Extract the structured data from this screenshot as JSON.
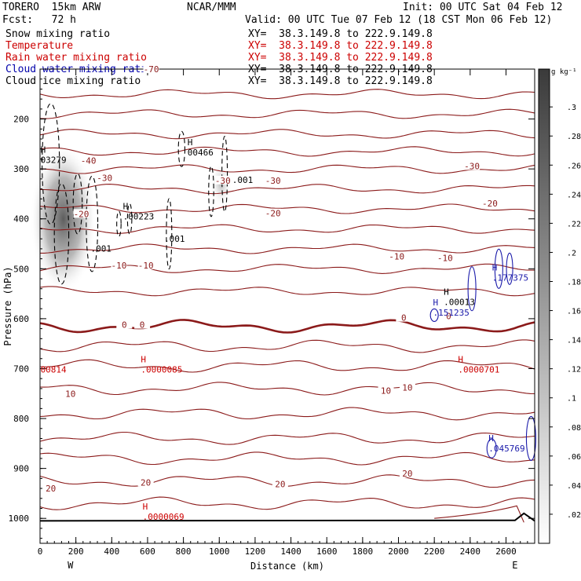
{
  "header": {
    "model": "TORERO  15km ARW",
    "org": "NCAR/MMM",
    "init": "Init: 00 UTC Sat 04 Feb 12",
    "fcst": "Fcst:   72 h",
    "valid": "Valid: 00 UTC Tue 07 Feb 12 (18 CST Mon 06 Feb 12)"
  },
  "fields": [
    {
      "name": "Snow mixing ratio",
      "xy": "XY=  38.3.149.8 to 222.9.149.8",
      "color": "#000000"
    },
    {
      "name": "Temperature",
      "xy": "XY=  38.3.149.8 to 222.9.149.8",
      "color": "#cc0000"
    },
    {
      "name": "Rain water mixing ratio",
      "xy": "XY=  38.3.149.8 to 222.9.149.8",
      "color": "#cc0000"
    },
    {
      "name": "Cloud water mixing ratio",
      "xy": "XY=  38.3.149.8 to 222.9.149.8",
      "color": "#0000aa"
    },
    {
      "name": "Cloud ice mixing ratio",
      "xy": "XY=  38.3.149.8 to 222.9.149.8",
      "color": "#000000"
    }
  ],
  "colors": {
    "temperature": "#8b1a1a",
    "rain": "#cc0000",
    "cloud_water": "#1a1aaa",
    "cloud_ice": "#000000",
    "axis": "#000000"
  },
  "chart_data": {
    "type": "cross-section contour",
    "xlabel": "Distance (km)",
    "ylabel": "Pressure (hPa)",
    "xlim": [
      0,
      2760
    ],
    "ylim": [
      1050,
      100
    ],
    "x_ticks": [
      0,
      200,
      400,
      600,
      800,
      1000,
      1200,
      1400,
      1600,
      1800,
      2000,
      2200,
      2400,
      2600
    ],
    "y_ticks": [
      200,
      300,
      400,
      500,
      600,
      700,
      800,
      900,
      1000
    ],
    "end_labels": {
      "left": "W",
      "right": "E"
    },
    "colorbar": {
      "unit": "g kg⁻¹",
      "ticks": [
        ".02",
        ".04",
        ".06",
        ".08",
        ".1",
        ".12",
        ".14",
        ".16",
        ".18",
        ".2",
        ".22",
        ".24",
        ".26",
        ".28",
        ".3"
      ]
    },
    "temperature_labels": [
      {
        "text": "-70",
        "x": 620,
        "p": 100
      },
      {
        "text": "-40",
        "x": 270,
        "p": 283
      },
      {
        "text": "-30",
        "x": 360,
        "p": 318
      },
      {
        "text": "-30",
        "x": 1020,
        "p": 323
      },
      {
        "text": "-30",
        "x": 1300,
        "p": 323
      },
      {
        "text": "-30",
        "x": 2410,
        "p": 294
      },
      {
        "text": "-20",
        "x": 230,
        "p": 390
      },
      {
        "text": "-20",
        "x": 1300,
        "p": 389
      },
      {
        "text": "-20",
        "x": 2510,
        "p": 369
      },
      {
        "text": "-10",
        "x": 440,
        "p": 493
      },
      {
        "text": "-10",
        "x": 590,
        "p": 493
      },
      {
        "text": "-10",
        "x": 1990,
        "p": 475
      },
      {
        "text": "-10",
        "x": 2260,
        "p": 478
      },
      {
        "text": "0",
        "x": 470,
        "p": 612
      },
      {
        "text": "0",
        "x": 570,
        "p": 612
      },
      {
        "text": "0",
        "x": 2030,
        "p": 598
      },
      {
        "text": "0",
        "x": 2280,
        "p": 595
      },
      {
        "text": "10",
        "x": 170,
        "p": 750
      },
      {
        "text": "10",
        "x": 1930,
        "p": 744
      },
      {
        "text": "10",
        "x": 2050,
        "p": 738
      },
      {
        "text": "20",
        "x": 60,
        "p": 940
      },
      {
        "text": "20",
        "x": 590,
        "p": 928
      },
      {
        "text": "20",
        "x": 1340,
        "p": 931
      },
      {
        "text": "20",
        "x": 2050,
        "p": 910
      }
    ],
    "temperature_isotherm_levels": [
      150,
      190,
      230,
      265,
      300,
      340,
      380,
      420,
      460,
      500,
      545,
      615,
      655,
      695,
      740,
      790,
      840,
      880,
      925,
      970
    ],
    "max_labels": [
      {
        "h": "H",
        "value": "03279",
        "x": 20,
        "p": 280,
        "field": "snow"
      },
      {
        "h": "H",
        "value": "00466",
        "x": 840,
        "p": 265,
        "field": "snow"
      },
      {
        "h": "H",
        "value": ".00223",
        "x": 480,
        "p": 393,
        "field": "snow"
      },
      {
        "h": "",
        "value": ".001",
        "x": 300,
        "p": 458,
        "field": "snow"
      },
      {
        "h": "",
        "value": ".001",
        "x": 710,
        "p": 438,
        "field": "snow"
      },
      {
        "h": "",
        "value": ".001",
        "x": 1090,
        "p": 320,
        "field": "snow"
      },
      {
        "h": "H",
        "value": ".00013",
        "x": 2270,
        "p": 565,
        "field": "ice"
      },
      {
        "h": "H",
        "value": ".151235",
        "x": 2210,
        "p": 586,
        "field": "cloud_water"
      },
      {
        "h": "H",
        "value": ".177375",
        "x": 2540,
        "p": 516,
        "field": "cloud_water"
      },
      {
        "h": "H",
        "value": ".045769",
        "x": 2520,
        "p": 858,
        "field": "cloud_water"
      },
      {
        "h": "",
        "value": "00814",
        "x": 20,
        "p": 700,
        "field": "rain"
      },
      {
        "h": "H",
        "value": ".0000085",
        "x": 580,
        "p": 700,
        "field": "rain"
      },
      {
        "h": "H",
        "value": ".0000701",
        "x": 2350,
        "p": 700,
        "field": "rain"
      },
      {
        "h": "H",
        "value": ".0000069",
        "x": 590,
        "p": 995,
        "field": "rain"
      }
    ]
  }
}
